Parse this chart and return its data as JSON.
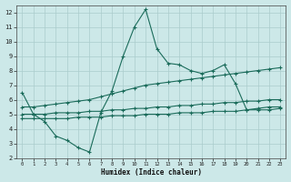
{
  "xlabel": "Humidex (Indice chaleur)",
  "bg_color": "#cce8e8",
  "grid_color": "#aacccc",
  "line_color": "#1a6b5a",
  "xlim": [
    -0.5,
    23.5
  ],
  "ylim": [
    2,
    12.5
  ],
  "xticks": [
    0,
    1,
    2,
    3,
    4,
    5,
    6,
    7,
    8,
    9,
    10,
    11,
    12,
    13,
    14,
    15,
    16,
    17,
    18,
    19,
    20,
    21,
    22,
    23
  ],
  "yticks": [
    2,
    3,
    4,
    5,
    6,
    7,
    8,
    9,
    10,
    11,
    12
  ],
  "series": [
    {
      "x": [
        0,
        1,
        2,
        3,
        4,
        5,
        6,
        7,
        8,
        9,
        10,
        11,
        12,
        13,
        14,
        15,
        16,
        17,
        18,
        19,
        20,
        21,
        22,
        23
      ],
      "y": [
        6.5,
        5.0,
        4.5,
        3.5,
        3.2,
        2.7,
        2.4,
        5.1,
        6.6,
        9.0,
        11.0,
        12.2,
        9.5,
        8.5,
        8.4,
        8.0,
        7.8,
        8.0,
        8.4,
        7.1,
        5.3,
        5.4,
        5.5,
        5.5
      ]
    },
    {
      "x": [
        0,
        1,
        2,
        3,
        4,
        5,
        6,
        7,
        8,
        9,
        10,
        11,
        12,
        13,
        14,
        15,
        16,
        17,
        18,
        19,
        20,
        21,
        22,
        23
      ],
      "y": [
        5.5,
        5.5,
        5.6,
        5.7,
        5.8,
        5.9,
        6.0,
        6.2,
        6.4,
        6.6,
        6.8,
        7.0,
        7.1,
        7.2,
        7.3,
        7.4,
        7.5,
        7.6,
        7.7,
        7.8,
        7.9,
        8.0,
        8.1,
        8.2
      ]
    },
    {
      "x": [
        0,
        1,
        2,
        3,
        4,
        5,
        6,
        7,
        8,
        9,
        10,
        11,
        12,
        13,
        14,
        15,
        16,
        17,
        18,
        19,
        20,
        21,
        22,
        23
      ],
      "y": [
        5.0,
        5.0,
        5.0,
        5.1,
        5.1,
        5.1,
        5.2,
        5.2,
        5.3,
        5.3,
        5.4,
        5.4,
        5.5,
        5.5,
        5.6,
        5.6,
        5.7,
        5.7,
        5.8,
        5.8,
        5.9,
        5.9,
        6.0,
        6.0
      ]
    },
    {
      "x": [
        0,
        1,
        2,
        3,
        4,
        5,
        6,
        7,
        8,
        9,
        10,
        11,
        12,
        13,
        14,
        15,
        16,
        17,
        18,
        19,
        20,
        21,
        22,
        23
      ],
      "y": [
        4.7,
        4.7,
        4.7,
        4.7,
        4.7,
        4.8,
        4.8,
        4.8,
        4.9,
        4.9,
        4.9,
        5.0,
        5.0,
        5.0,
        5.1,
        5.1,
        5.1,
        5.2,
        5.2,
        5.2,
        5.3,
        5.3,
        5.3,
        5.4
      ]
    }
  ]
}
